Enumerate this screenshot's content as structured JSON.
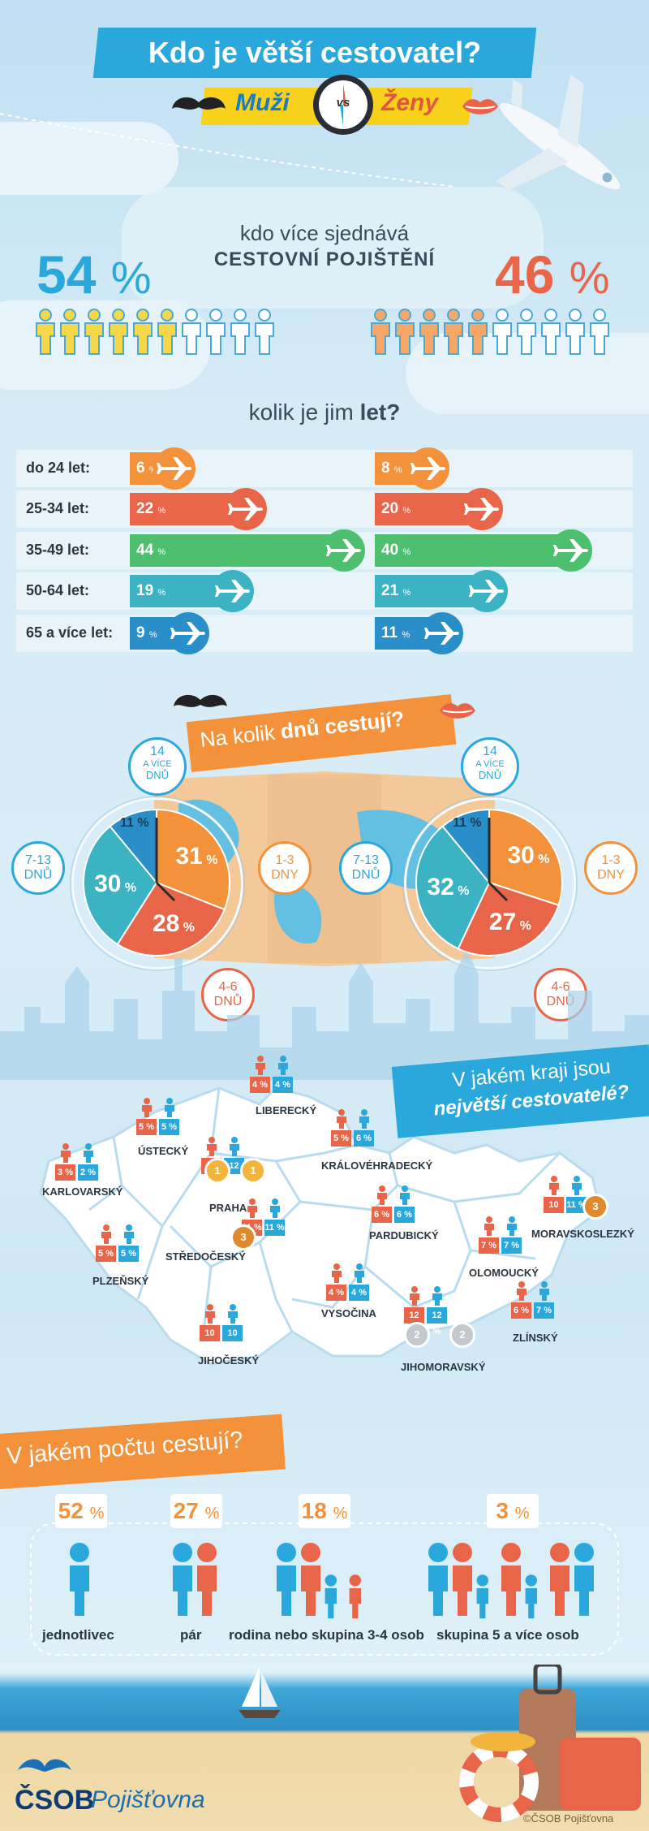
{
  "header": {
    "title": "Kdo je větší cestovatel?",
    "men": "Muži",
    "vs": "vs",
    "women": "Ženy"
  },
  "insurance": {
    "question_line1": "kdo více sjednává",
    "question_line2": "CESTOVNÍ POJIŠTĚNÍ",
    "men_value": "54",
    "women_value": "46",
    "unit": "%"
  },
  "age": {
    "title_prefix": "kolik je jim ",
    "title_bold": "let?"
  },
  "days": {
    "title_prefix": "Na kolik ",
    "title_bold": "dnů cestují?",
    "label_14_line1": "14",
    "label_14_line2": "A VÍCE",
    "label_14_line3": "DNŮ",
    "label_7_line1": "7-13",
    "label_7_line2": "DNŮ",
    "label_1_line1": "1-3",
    "label_1_line2": "DNY",
    "label_4_line1": "4-6",
    "label_4_line2": "DNŮ"
  },
  "regions": {
    "title_line1": "V jakém kraji jsou",
    "title_line2": "největší cestovatelé?",
    "items": [
      {
        "name": "LIBERECKÝ",
        "men": "4",
        "women": "4"
      },
      {
        "name": "ÚSTECKÝ",
        "men": "5",
        "women": "5"
      },
      {
        "name": "KARLOVARSKÝ",
        "men": "3",
        "women": "2"
      },
      {
        "name": "PRAHA",
        "men": "13",
        "women": "12"
      },
      {
        "name": "KRÁLOVÉHRADECKÝ",
        "men": "5",
        "women": "6"
      },
      {
        "name": "STŘEDOČESKÝ",
        "men": "11",
        "women": "11"
      },
      {
        "name": "PARDUBICKÝ",
        "men": "6",
        "women": "6"
      },
      {
        "name": "MORAVSKOSLEZKÝ",
        "men": "10",
        "women": "11"
      },
      {
        "name": "PLZEŇSKÝ",
        "men": "5",
        "women": "5"
      },
      {
        "name": "OLOMOUCKÝ",
        "men": "7",
        "women": "7"
      },
      {
        "name": "VYSOČINA",
        "men": "4",
        "women": "4"
      },
      {
        "name": "JIHOČESKÝ",
        "men": "10",
        "women": "10"
      },
      {
        "name": "ZLÍNSKÝ",
        "men": "6",
        "women": "7"
      },
      {
        "name": "JIHOMORAVSKÝ",
        "men": "12",
        "women": "12"
      }
    ],
    "medals": [
      "1",
      "1",
      "3",
      "3",
      "2",
      "2"
    ]
  },
  "group": {
    "title": "V jakém počtu cestují?",
    "items": [
      {
        "value": "52",
        "label": "jednotlivec"
      },
      {
        "value": "27",
        "label": "pár"
      },
      {
        "value": "18",
        "label": "rodina nebo skupina 3-4 osob"
      },
      {
        "value": "3",
        "label": "skupina 5 a více osob"
      }
    ],
    "unit": "%"
  },
  "footer": {
    "brand": "ČSOB",
    "brand_sub": "Pojišťovna",
    "copyright": "©ČSOB Pojišťovna"
  },
  "colors": {
    "men": "#2aa8dc",
    "women": "#f3923b",
    "green": "#4dbf6f",
    "red": "#e8654a",
    "teal": "#3bb3c3"
  },
  "chart_data": [
    {
      "type": "bar",
      "categories": [
        "do 24 let:",
        "25-34 let:",
        "35-49 let:",
        "50-64 let:",
        "65 a více let:"
      ],
      "series": [
        {
          "values": [
            6,
            22,
            44,
            19,
            9
          ]
        },
        {
          "values": [
            8,
            20,
            40,
            21,
            11
          ]
        }
      ],
      "unit": "%"
    },
    {
      "type": "pie",
      "categories": [
        "1-3 DNY",
        "4-6 DNŮ",
        "7-13 DNŮ",
        "14 A VÍCE DNŮ"
      ],
      "values": [
        31,
        28,
        30,
        11
      ],
      "unit": "%"
    },
    {
      "type": "pie",
      "categories": [
        "1-3 DNY",
        "4-6 DNŮ",
        "7-13 DNŮ",
        "14 A VÍCE DNŮ"
      ],
      "values": [
        30,
        27,
        32,
        11
      ],
      "unit": "%"
    }
  ]
}
